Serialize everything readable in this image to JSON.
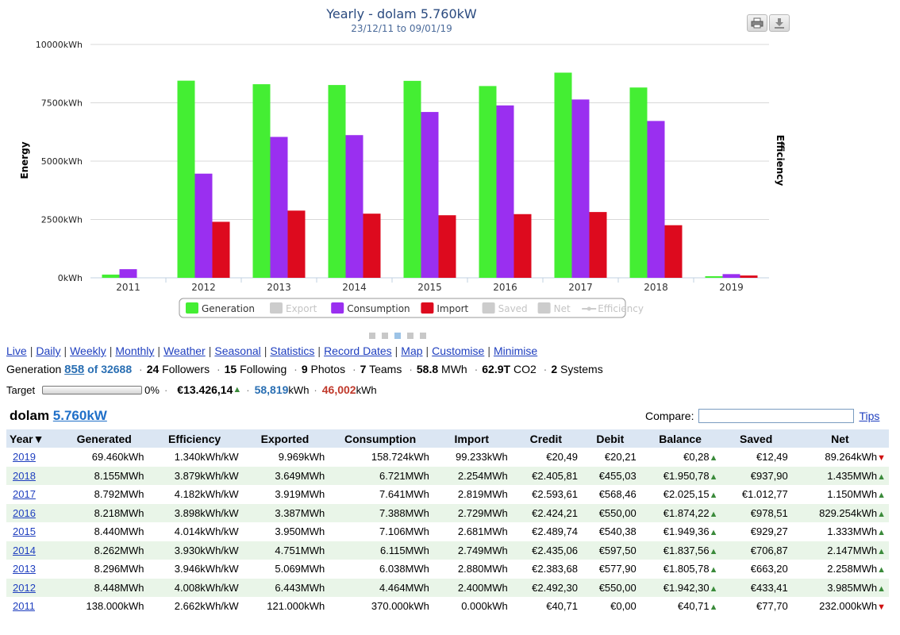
{
  "chart_data": {
    "type": "bar",
    "title": "Yearly - dolam 5.760kW",
    "subtitle": "23/12/11 to 09/01/19",
    "ylabel": "Energy",
    "ylabel_right": "Efficiency",
    "ylim": [
      0,
      10000
    ],
    "yticks": [
      "0kWh",
      "2500kWh",
      "5000kWh",
      "7500kWh",
      "10000kWh"
    ],
    "ytick_values": [
      0,
      2500,
      5000,
      7500,
      10000
    ],
    "categories": [
      "2011",
      "2012",
      "2013",
      "2014",
      "2015",
      "2016",
      "2017",
      "2018",
      "2019"
    ],
    "series": [
      {
        "name": "Generation",
        "color": "#44ee33",
        "values": [
          138,
          8448,
          8296,
          8262,
          8440,
          8218,
          8792,
          8155,
          69.46
        ]
      },
      {
        "name": "Consumption",
        "color": "#9a2ff0",
        "values": [
          370,
          4464,
          6038,
          6115,
          7106,
          7388,
          7641,
          6721,
          158.724
        ]
      },
      {
        "name": "Import",
        "color": "#dd0a1e",
        "values": [
          0,
          2400,
          2880,
          2749,
          2681,
          2729,
          2819,
          2254,
          99.233
        ]
      }
    ],
    "legend": [
      {
        "name": "Generation",
        "color": "#44ee33",
        "enabled": true
      },
      {
        "name": "Export",
        "color": "#cccccc",
        "enabled": false
      },
      {
        "name": "Consumption",
        "color": "#9a2ff0",
        "enabled": true
      },
      {
        "name": "Import",
        "color": "#dd0a1e",
        "enabled": true
      },
      {
        "name": "Saved",
        "color": "#cccccc",
        "enabled": false
      },
      {
        "name": "Net",
        "color": "#cccccc",
        "enabled": false
      },
      {
        "name": "Efficiency",
        "color": "#cccccc",
        "enabled": false,
        "line": true
      }
    ],
    "legend_position": "bottom",
    "grid": true
  },
  "toolbar": {
    "print_icon": "printer-icon",
    "download_icon": "download-icon"
  },
  "pager": {
    "count": 5,
    "active": 2
  },
  "nav": {
    "links": [
      "Live",
      "Daily",
      "Weekly",
      "Monthly",
      "Weather",
      "Seasonal",
      "Statistics",
      "Record Dates",
      "Map",
      "Customise",
      "Minimise"
    ]
  },
  "stats": {
    "generation_label": "Generation",
    "rank": "858",
    "rank_of": "of 32688",
    "followers_n": "24",
    "followers_label": "Followers",
    "following_n": "15",
    "following_label": "Following",
    "photos_n": "9",
    "photos_label": "Photos",
    "teams_n": "7",
    "teams_label": "Teams",
    "energy_n": "58.8",
    "energy_label": "MWh",
    "co2_n": "62.9T",
    "co2_label": "CO2",
    "systems_n": "2",
    "systems_label": "Systems"
  },
  "target": {
    "label": "Target",
    "progress": 0,
    "percent": "0%",
    "money": "€13.426,14",
    "generated": "58,819",
    "generated_unit": "kWh",
    "consumed": "46,002",
    "consumed_unit": "kWh"
  },
  "system": {
    "name": "dolam",
    "size": "5.760kW"
  },
  "compare": {
    "label": "Compare:",
    "value": "",
    "tips": "Tips"
  },
  "table": {
    "headers": [
      "Year▼",
      "Generated",
      "Efficiency",
      "Exported",
      "Consumption",
      "Import",
      "Credit",
      "Debit",
      "Balance",
      "Saved",
      "Net"
    ],
    "rows": [
      {
        "year": "2019",
        "generated": "69.460kWh",
        "efficiency": "1.340kWh/kW",
        "exported": "9.969kWh",
        "consumption": "158.724kWh",
        "import": "99.233kWh",
        "credit": "€20,49",
        "debit": "€20,21",
        "balance": "€0,28",
        "saved": "€12,49",
        "net": "89.264kWh",
        "net_dir": "down"
      },
      {
        "year": "2018",
        "generated": "8.155MWh",
        "efficiency": "3.879kWh/kW",
        "exported": "3.649MWh",
        "consumption": "6.721MWh",
        "import": "2.254MWh",
        "credit": "€2.405,81",
        "debit": "€455,03",
        "balance": "€1.950,78",
        "saved": "€937,90",
        "net": "1.435MWh",
        "net_dir": "up"
      },
      {
        "year": "2017",
        "generated": "8.792MWh",
        "efficiency": "4.182kWh/kW",
        "exported": "3.919MWh",
        "consumption": "7.641MWh",
        "import": "2.819MWh",
        "credit": "€2.593,61",
        "debit": "€568,46",
        "balance": "€2.025,15",
        "saved": "€1.012,77",
        "net": "1.150MWh",
        "net_dir": "up"
      },
      {
        "year": "2016",
        "generated": "8.218MWh",
        "efficiency": "3.898kWh/kW",
        "exported": "3.387MWh",
        "consumption": "7.388MWh",
        "import": "2.729MWh",
        "credit": "€2.424,21",
        "debit": "€550,00",
        "balance": "€1.874,22",
        "saved": "€978,51",
        "net": "829.254kWh",
        "net_dir": "up"
      },
      {
        "year": "2015",
        "generated": "8.440MWh",
        "efficiency": "4.014kWh/kW",
        "exported": "3.950MWh",
        "consumption": "7.106MWh",
        "import": "2.681MWh",
        "credit": "€2.489,74",
        "debit": "€540,38",
        "balance": "€1.949,36",
        "saved": "€929,27",
        "net": "1.333MWh",
        "net_dir": "up"
      },
      {
        "year": "2014",
        "generated": "8.262MWh",
        "efficiency": "3.930kWh/kW",
        "exported": "4.751MWh",
        "consumption": "6.115MWh",
        "import": "2.749MWh",
        "credit": "€2.435,06",
        "debit": "€597,50",
        "balance": "€1.837,56",
        "saved": "€706,87",
        "net": "2.147MWh",
        "net_dir": "up"
      },
      {
        "year": "2013",
        "generated": "8.296MWh",
        "efficiency": "3.946kWh/kW",
        "exported": "5.069MWh",
        "consumption": "6.038MWh",
        "import": "2.880MWh",
        "credit": "€2.383,68",
        "debit": "€577,90",
        "balance": "€1.805,78",
        "saved": "€663,20",
        "net": "2.258MWh",
        "net_dir": "up"
      },
      {
        "year": "2012",
        "generated": "8.448MWh",
        "efficiency": "4.008kWh/kW",
        "exported": "6.443MWh",
        "consumption": "4.464MWh",
        "import": "2.400MWh",
        "credit": "€2.492,30",
        "debit": "€550,00",
        "balance": "€1.942,30",
        "saved": "€433,41",
        "net": "3.985MWh",
        "net_dir": "up"
      },
      {
        "year": "2011",
        "generated": "138.000kWh",
        "efficiency": "2.662kWh/kW",
        "exported": "121.000kWh",
        "consumption": "370.000kWh",
        "import": "0.000kWh",
        "credit": "€40,71",
        "debit": "€0,00",
        "balance": "€40,71",
        "saved": "€77,70",
        "net": "232.000kWh",
        "net_dir": "down"
      }
    ]
  }
}
